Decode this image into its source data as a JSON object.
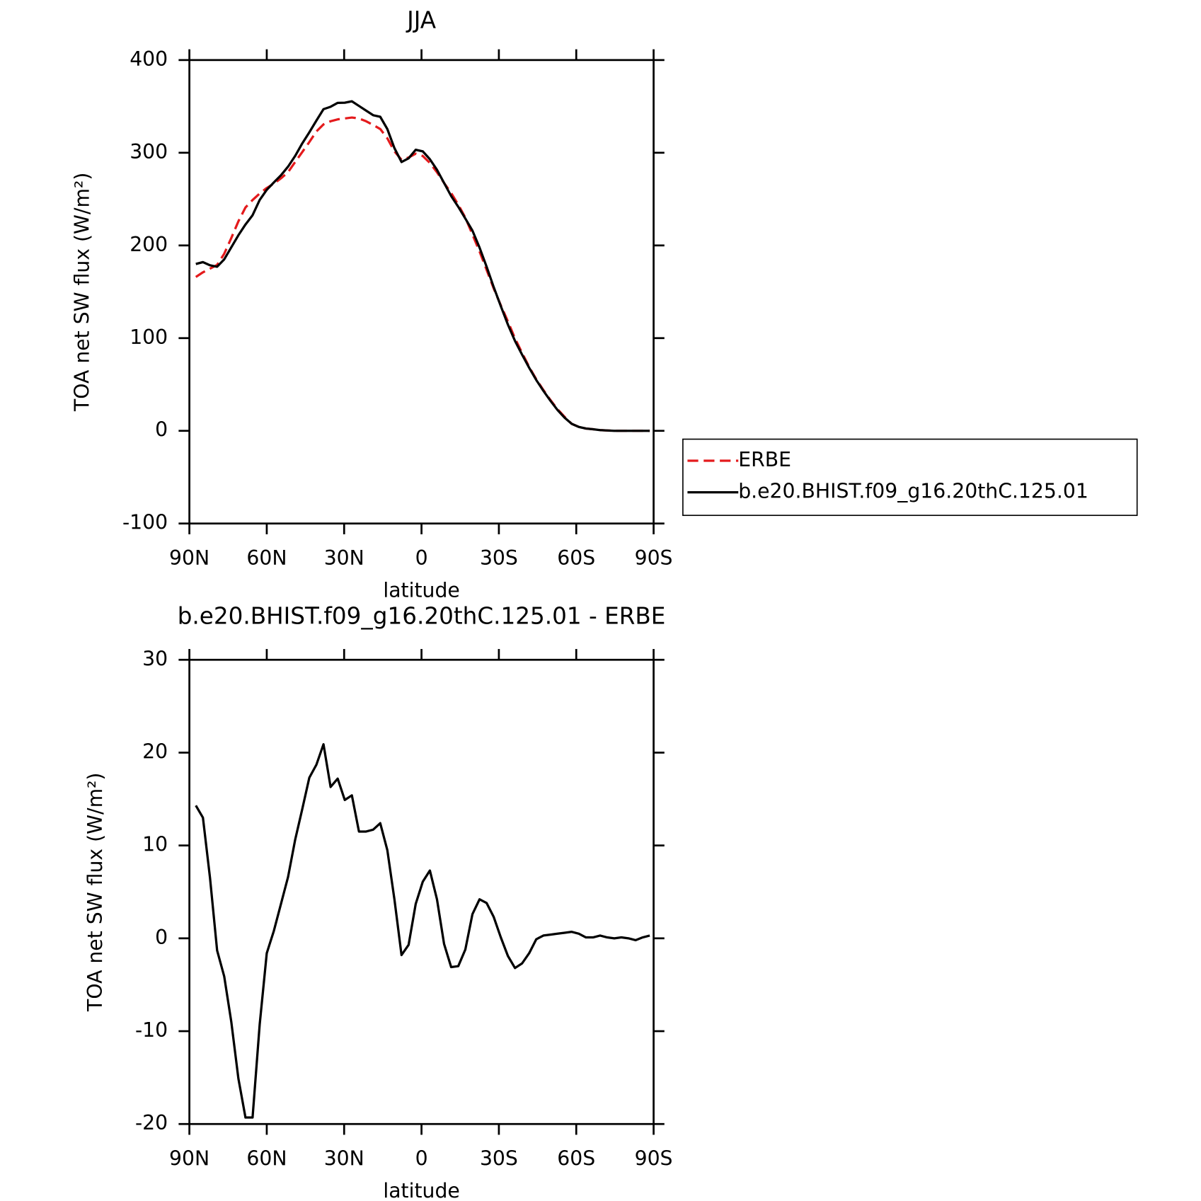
{
  "chart_data": [
    {
      "type": "line",
      "title": "JJA",
      "xlabel": "latitude",
      "ylabel": "TOA net SW flux (W/m²)",
      "xlim": [
        90,
        -90
      ],
      "xticks": [
        {
          "value": 90,
          "label": "90N"
        },
        {
          "value": 60,
          "label": "60N"
        },
        {
          "value": 30,
          "label": "30N"
        },
        0,
        {
          "value": -30,
          "label": "30S"
        },
        {
          "value": -60,
          "label": "60S"
        },
        {
          "value": -90,
          "label": "90S"
        }
      ],
      "ylim": [
        -100,
        400
      ],
      "yticks": [
        -100,
        0,
        100,
        200,
        300,
        400
      ],
      "legend": "right",
      "x": [
        87.5,
        84.75,
        82,
        79.25,
        76.5,
        73.75,
        71,
        68.25,
        65.5,
        62.75,
        60,
        57.25,
        54.5,
        51.75,
        49,
        46.25,
        43.5,
        40.75,
        38,
        35.25,
        32.5,
        29.75,
        27,
        24.25,
        21.5,
        18.75,
        16,
        13.25,
        10.5,
        7.75,
        5,
        2.25,
        -0.5,
        -3.25,
        -6,
        -8.75,
        -11.5,
        -14.25,
        -17,
        -19.75,
        -22.5,
        -25.25,
        -28,
        -30.75,
        -33.5,
        -36.25,
        -39,
        -41.75,
        -44.5,
        -47.25,
        -50,
        -52.75,
        -55.5,
        -58.25,
        -61,
        -63.75,
        -66.5,
        -69.25,
        -72,
        -74.75,
        -77.5,
        -80.25,
        -83,
        -85.75,
        -88.5
      ],
      "series": [
        {
          "name": "ERBE",
          "color": "#e41a1c",
          "linestyle": "dashed",
          "values": [
            166,
            171,
            175,
            179,
            191,
            208,
            226,
            241,
            249,
            256,
            262,
            266.6,
            272.4,
            279,
            290,
            300.7,
            311.5,
            323,
            330.6,
            334,
            336,
            337,
            338,
            337,
            334,
            330,
            325.6,
            315.6,
            301.5,
            292.4,
            294.9,
            299,
            296.5,
            289,
            279,
            267.4,
            256.6,
            244,
            230,
            211.8,
            193.5,
            173.6,
            153.6,
            135.4,
            118,
            99.7,
            84,
            69,
            55.6,
            44,
            33.2,
            23.3,
            15,
            7.5,
            4.2,
            2.5,
            1.7,
            0.8,
            0.4,
            0,
            0,
            0,
            0,
            0,
            0
          ]
        },
        {
          "name": "b.e20.BHIST.f09_g16.20thC.125.01",
          "color": "#000000",
          "linestyle": "solid",
          "values": [
            180,
            182,
            178.6,
            177,
            185,
            198,
            211,
            222.6,
            232.6,
            249,
            260,
            268,
            275.7,
            285,
            296.5,
            310,
            322,
            334.7,
            347,
            349.6,
            353.8,
            354,
            355.5,
            350.5,
            345.5,
            340.5,
            338.8,
            325.6,
            305,
            290,
            294,
            303.2,
            301.5,
            293,
            281.6,
            267.4,
            253.3,
            241.7,
            229,
            216,
            197.7,
            177,
            155,
            134.5,
            114.6,
            97,
            82.2,
            68,
            54.8,
            43.2,
            32.4,
            22.4,
            14.1,
            7.5,
            4.2,
            2.5,
            1.7,
            0.8,
            0.4,
            0,
            0,
            0,
            0,
            0,
            0
          ]
        }
      ]
    },
    {
      "type": "line",
      "title": "b.e20.BHIST.f09_g16.20thC.125.01 - ERBE",
      "xlabel": "latitude",
      "ylabel": "TOA net SW flux (W/m²)",
      "xlim": [
        90,
        -90
      ],
      "xticks": [
        {
          "value": 90,
          "label": "90N"
        },
        {
          "value": 60,
          "label": "60N"
        },
        {
          "value": 30,
          "label": "30N"
        },
        0,
        {
          "value": -30,
          "label": "30S"
        },
        {
          "value": -60,
          "label": "60S"
        },
        {
          "value": -90,
          "label": "90S"
        }
      ],
      "ylim": [
        -20,
        30
      ],
      "yticks": [
        -20,
        -10,
        0,
        10,
        20,
        30
      ],
      "color": "#000000",
      "x": [
        87.5,
        84.75,
        82,
        79.25,
        76.5,
        73.75,
        71,
        68.25,
        65.5,
        62.75,
        60,
        57.25,
        54.5,
        51.75,
        49,
        46.25,
        43.5,
        40.75,
        38,
        35.25,
        32.5,
        29.75,
        27,
        24.25,
        21.5,
        18.75,
        16,
        13.25,
        10.5,
        7.75,
        5,
        2.25,
        -0.5,
        -3.25,
        -6,
        -8.75,
        -11.5,
        -14.25,
        -17,
        -19.75,
        -22.5,
        -25.25,
        -28,
        -30.75,
        -33.5,
        -36.25,
        -39,
        -41.75,
        -44.5,
        -47.25,
        -50,
        -52.75,
        -55.5,
        -58.25,
        -61,
        -63.75,
        -66.5,
        -69.25,
        -72,
        -74.75,
        -77.5,
        -80.25,
        -83,
        -85.75,
        -88.5
      ],
      "values": [
        14.3,
        13.0,
        6.5,
        -1.3,
        -4.1,
        -9,
        -15.1,
        -19.3,
        -19.3,
        -9.3,
        -1.6,
        0.8,
        3.7,
        6.6,
        10.6,
        13.9,
        17.3,
        18.7,
        20.9,
        16.3,
        17.2,
        14.9,
        15.4,
        11.5,
        11.5,
        11.7,
        12.4,
        9.5,
        4.2,
        -1.8,
        -0.7,
        3.7,
        6.1,
        7.3,
        4.2,
        -0.6,
        -3.1,
        -3,
        -1.2,
        2.6,
        4.2,
        3.8,
        2.3,
        0.1,
        -1.9,
        -3.2,
        -2.7,
        -1.6,
        -0.1,
        0.3,
        0.4,
        0.5,
        0.6,
        0.7,
        0.5,
        0.1,
        0.1,
        0.3,
        0.1,
        0,
        0.1,
        0,
        -0.2,
        0.1,
        0.3
      ]
    }
  ]
}
